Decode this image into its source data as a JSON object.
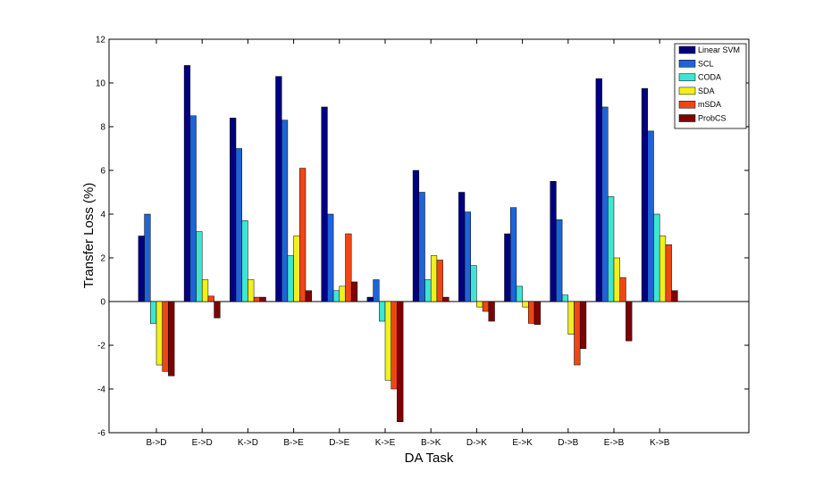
{
  "chart_data": {
    "type": "bar",
    "title": "",
    "xlabel": "DA Task",
    "ylabel": "Transfer Loss (%)",
    "ylim": [
      -6,
      12
    ],
    "yticks": [
      -6,
      -4,
      -2,
      0,
      2,
      4,
      6,
      8,
      10,
      12
    ],
    "grid": false,
    "legend_position": "top-right",
    "categories": [
      "B->D",
      "E->D",
      "K->D",
      "B->E",
      "D->E",
      "K->E",
      "B->K",
      "D->K",
      "E->K",
      "D->B",
      "E->B",
      "K->B"
    ],
    "series": [
      {
        "name": "Linear SVM",
        "color": "#000080",
        "values": [
          3.0,
          10.8,
          8.4,
          10.3,
          8.9,
          0.2,
          6.0,
          5.0,
          3.1,
          5.5,
          10.2,
          9.75
        ]
      },
      {
        "name": "SCL",
        "color": "#1e64d8",
        "values": [
          4.0,
          8.5,
          7.0,
          8.3,
          4.0,
          1.0,
          5.0,
          4.1,
          4.3,
          3.75,
          8.9,
          7.8
        ]
      },
      {
        "name": "CODA",
        "color": "#3ce6d2",
        "values": [
          -1.0,
          3.2,
          3.7,
          2.1,
          0.5,
          -0.9,
          1.0,
          1.65,
          0.7,
          0.3,
          4.8,
          4.0
        ]
      },
      {
        "name": "SDA",
        "color": "#f0f01e",
        "values": [
          -2.9,
          1.0,
          1.0,
          3.0,
          0.7,
          -3.6,
          2.1,
          -0.25,
          -0.25,
          -1.5,
          2.0,
          3.0
        ]
      },
      {
        "name": "mSDA",
        "color": "#f04614",
        "values": [
          -3.2,
          0.25,
          0.2,
          6.1,
          3.1,
          -4.0,
          1.9,
          -0.45,
          -1.0,
          -2.9,
          1.1,
          2.6
        ]
      },
      {
        "name": "ProbCS",
        "color": "#800000",
        "values": [
          -3.4,
          -0.75,
          0.2,
          0.5,
          0.9,
          -5.5,
          0.2,
          -0.9,
          -1.05,
          -2.15,
          -1.8,
          0.5
        ]
      }
    ]
  }
}
